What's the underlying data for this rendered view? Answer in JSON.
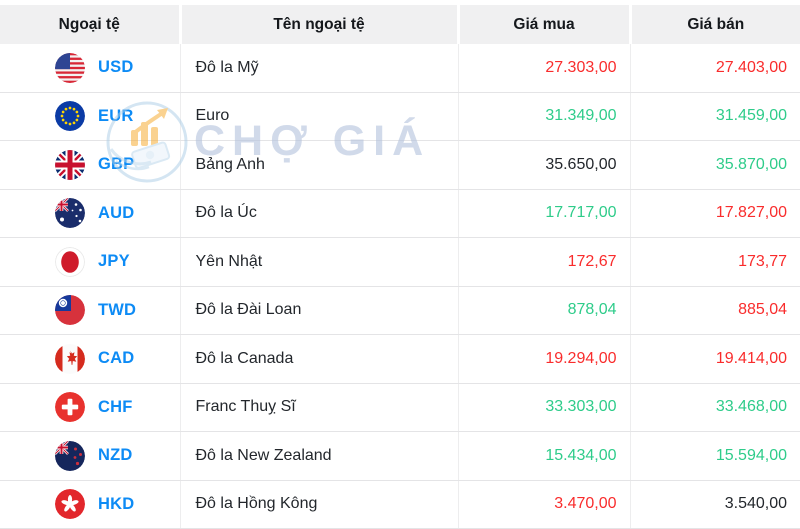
{
  "table": {
    "headers": [
      "Ngoại tệ",
      "Tên ngoại tệ",
      "Giá mua",
      "Giá bán"
    ],
    "rows": [
      {
        "code": "USD",
        "name": "Đô la Mỹ",
        "buy": "27.303,00",
        "sell": "27.403,00",
        "buy_trend": "down",
        "sell_trend": "down",
        "flag": "us"
      },
      {
        "code": "EUR",
        "name": "Euro",
        "buy": "31.349,00",
        "sell": "31.459,00",
        "buy_trend": "up",
        "sell_trend": "up",
        "flag": "eu"
      },
      {
        "code": "GBP",
        "name": "Bảng Anh",
        "buy": "35.650,00",
        "sell": "35.870,00",
        "buy_trend": "none",
        "sell_trend": "up",
        "flag": "gb"
      },
      {
        "code": "AUD",
        "name": "Đô la Úc",
        "buy": "17.717,00",
        "sell": "17.827,00",
        "buy_trend": "up",
        "sell_trend": "down",
        "flag": "au"
      },
      {
        "code": "JPY",
        "name": "Yên Nhật",
        "buy": "172,67",
        "sell": "173,77",
        "buy_trend": "down",
        "sell_trend": "down",
        "flag": "jp"
      },
      {
        "code": "TWD",
        "name": "Đô la Đài Loan",
        "buy": "878,04",
        "sell": "885,04",
        "buy_trend": "up",
        "sell_trend": "down",
        "flag": "tw"
      },
      {
        "code": "CAD",
        "name": "Đô la Canada",
        "buy": "19.294,00",
        "sell": "19.414,00",
        "buy_trend": "down",
        "sell_trend": "down",
        "flag": "ca"
      },
      {
        "code": "CHF",
        "name": "Franc Thuỵ Sĩ",
        "buy": "33.303,00",
        "sell": "33.468,00",
        "buy_trend": "up",
        "sell_trend": "up",
        "flag": "ch"
      },
      {
        "code": "NZD",
        "name": "Đô la New Zealand",
        "buy": "15.434,00",
        "sell": "15.594,00",
        "buy_trend": "up",
        "sell_trend": "up",
        "flag": "nz"
      },
      {
        "code": "HKD",
        "name": "Đô la Hồng Kông",
        "buy": "3.470,00",
        "sell": "3.540,00",
        "buy_trend": "down",
        "sell_trend": "none",
        "flag": "hk"
      }
    ]
  },
  "watermark": {
    "text": "CHỢ GIÁ"
  },
  "colors": {
    "price_up": "#2ecc8a",
    "price_down": "#f92c2c",
    "price_neutral": "#23272c",
    "code_link": "#0d8bf5",
    "header_bg": "#f0f0f1"
  }
}
